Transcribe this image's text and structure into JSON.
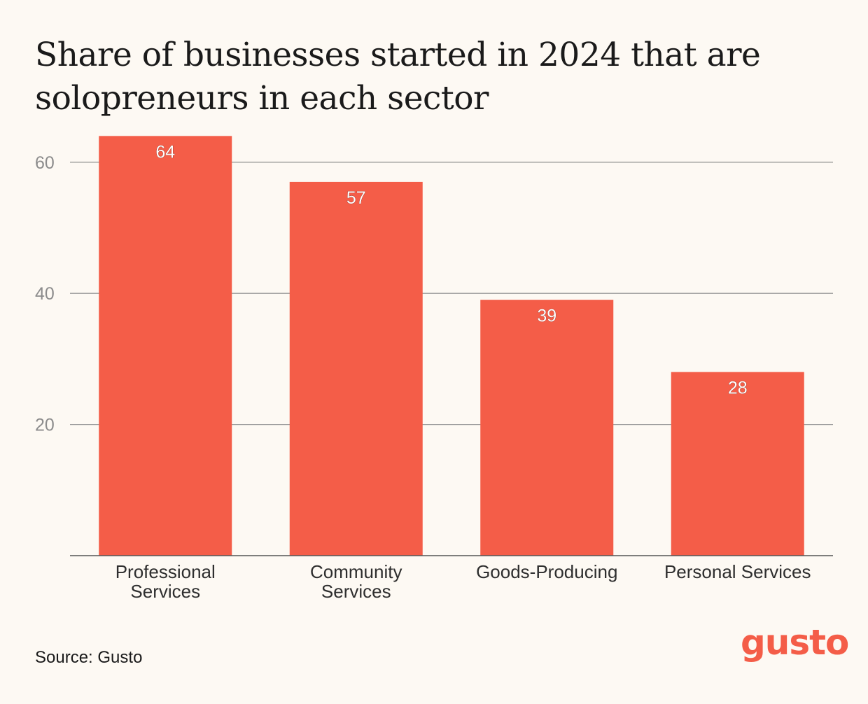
{
  "colors": {
    "bar": "#F45D48",
    "grid": "#9A9A9A",
    "axis": "#555555",
    "tick_label": "#8C8C8C",
    "category_label": "#2E2E2E",
    "value_label": "#FFFFFF",
    "background": "#FDF9F3",
    "logo": "#F45D48"
  },
  "source": "Source: Gusto",
  "logo": "gusto",
  "chart_data": {
    "type": "bar",
    "title": "Share of businesses started in 2024 that are solopreneurs in each sector",
    "xlabel": "",
    "ylabel": "",
    "categories": [
      [
        "Professional",
        "Services"
      ],
      [
        "Community",
        "Services"
      ],
      [
        "Goods-Producing"
      ],
      [
        "Personal Services"
      ]
    ],
    "values": [
      64,
      57,
      39,
      28
    ],
    "value_labels": [
      "64",
      "57",
      "39",
      "28"
    ],
    "ylim": [
      0,
      68
    ],
    "yticks": [
      20,
      40,
      60
    ],
    "ytick_labels": [
      "20",
      "40",
      "60"
    ],
    "grid": true,
    "legend": "none"
  }
}
